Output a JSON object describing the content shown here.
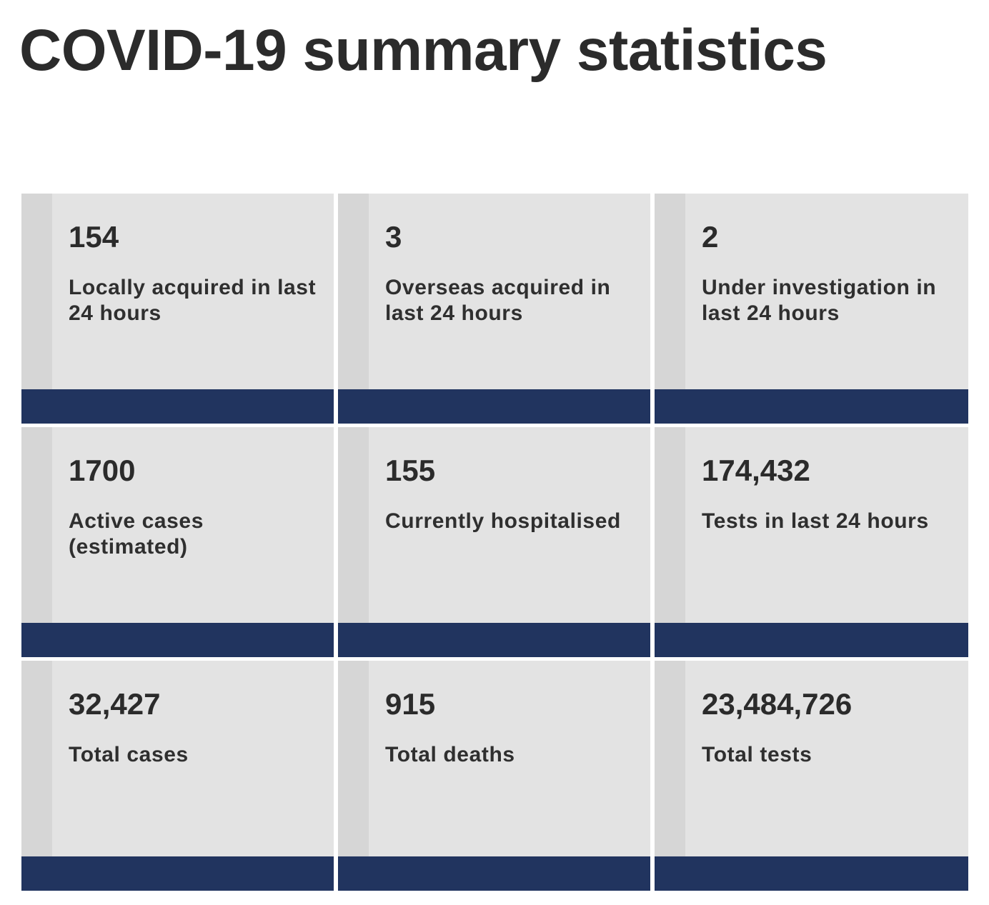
{
  "page": {
    "title": "COVID-19 summary statistics"
  },
  "colors": {
    "card_background": "#e3e3e3",
    "card_side_strip": "#d6d6d6",
    "card_footer": "#21345f",
    "text": "#2b2b2b"
  },
  "stats": [
    {
      "value": "154",
      "label": "Locally acquired in last 24 hours"
    },
    {
      "value": "3",
      "label": "Overseas acquired in last 24 hours"
    },
    {
      "value": "2",
      "label": "Under investigation in last 24 hours"
    },
    {
      "value": "1700",
      "label": "Active cases (estimated)"
    },
    {
      "value": "155",
      "label": "Currently hospitalised"
    },
    {
      "value": "174,432",
      "label": "Tests in last 24 hours"
    },
    {
      "value": "32,427",
      "label": "Total cases"
    },
    {
      "value": "915",
      "label": "Total deaths"
    },
    {
      "value": "23,484,726",
      "label": "Total tests"
    }
  ]
}
